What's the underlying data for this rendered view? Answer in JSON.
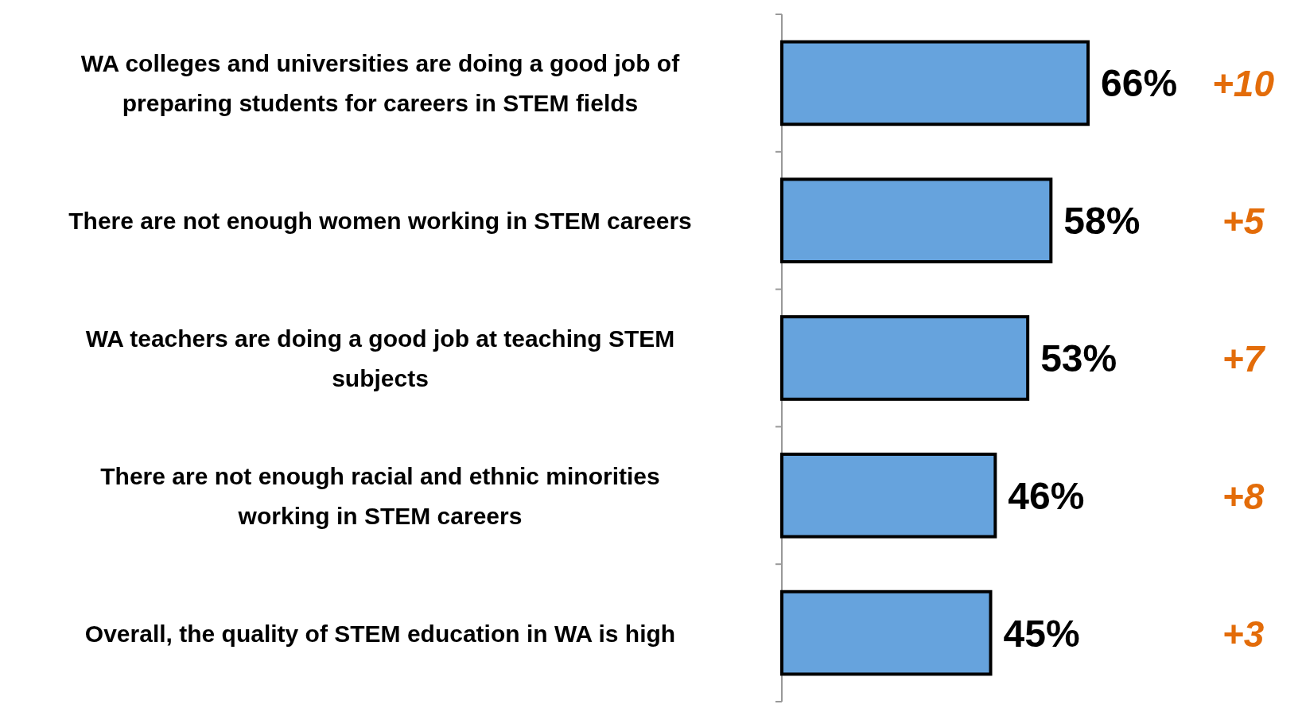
{
  "chart_data": {
    "type": "bar",
    "orientation": "horizontal",
    "categories": [
      "WA colleges and universities are doing a good job of preparing students for careers in STEM fields",
      "There are not enough women working in STEM careers",
      "WA teachers are doing a good job at teaching STEM subjects",
      "There are not enough racial and ethnic minorities working in STEM careers",
      "Overall, the quality of STEM education in WA is high"
    ],
    "values": [
      66,
      58,
      53,
      46,
      45
    ],
    "value_labels": [
      "66%",
      "58%",
      "53%",
      "46%",
      "45%"
    ],
    "color": "#66a3dd",
    "annotations": [
      "+10",
      "+5",
      "+7",
      "+8",
      "+3"
    ]
  }
}
